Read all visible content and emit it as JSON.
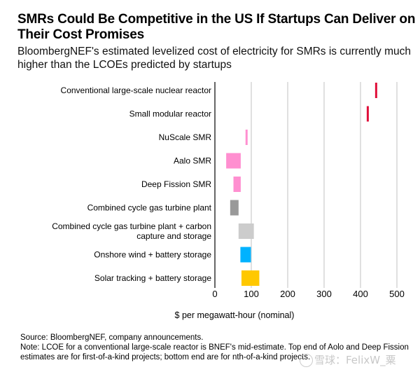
{
  "header": {
    "title": "SMRs Could Be Competitive in the US If Startups Can Deliver on Their Cost Promises",
    "subtitle": "BloombergNEF's estimated levelized cost of electricity for SMRs is currently much higher than the LCOEs predicted by startups"
  },
  "chart_data": {
    "type": "bar",
    "orientation": "horizontal-range",
    "title": "SMRs Could Be Competitive in the US If Startups Can Deliver on Their Cost Promises",
    "xlabel": "$ per megawatt-hour (nominal)",
    "ylabel": "",
    "xlim": [
      0,
      500
    ],
    "xticks": [
      0,
      100,
      200,
      300,
      400,
      500
    ],
    "grid": true,
    "categories": [
      "Conventional large-scale nuclear reactor",
      "Small modular reactor",
      "NuScale SMR",
      "Aalo SMR",
      "Deep Fission SMR",
      "Combined cycle gas turbine plant",
      "Combined cycle gas turbine plant + carbon capture and storage",
      "Onshore wind + battery storage",
      "Solar tracking + battery storage"
    ],
    "label_lines": [
      [
        "Conventional large-scale nuclear reactor"
      ],
      [
        "Small modular reactor"
      ],
      [
        "NuScale SMR"
      ],
      [
        "Aalo SMR"
      ],
      [
        "Deep Fission SMR"
      ],
      [
        "Combined cycle gas turbine plant"
      ],
      [
        "Combined cycle gas turbine plant + carbon",
        "capture and storage"
      ],
      [
        "Onshore wind + battery storage"
      ],
      [
        "Solar tracking + battery storage"
      ]
    ],
    "ranges": [
      {
        "low": 443,
        "high": 443,
        "color": "#e0103b"
      },
      {
        "low": 420,
        "high": 420,
        "color": "#e0103b"
      },
      {
        "low": 87,
        "high": 87,
        "color": "#ff8fd0"
      },
      {
        "low": 31,
        "high": 71,
        "color": "#ff8fd0"
      },
      {
        "low": 51,
        "high": 71,
        "color": "#ff8fd0"
      },
      {
        "low": 42,
        "high": 65,
        "color": "#999999"
      },
      {
        "low": 65,
        "high": 107,
        "color": "#cccccc"
      },
      {
        "low": 70,
        "high": 99,
        "color": "#00b2ff"
      },
      {
        "low": 73,
        "high": 122,
        "color": "#ffc800"
      }
    ]
  },
  "footer": {
    "source": "Source: BloombergNEF, company announcements.",
    "note": "Note: LCOE for a conventional large-scale reactor is BNEF's mid-estimate. Top end of Aolo and Deep Fission estimates are for first-of-a-kind projects; bottom end are for nth-of-a-kind projects.",
    "watermark": "雪球：FelixW_粟"
  }
}
